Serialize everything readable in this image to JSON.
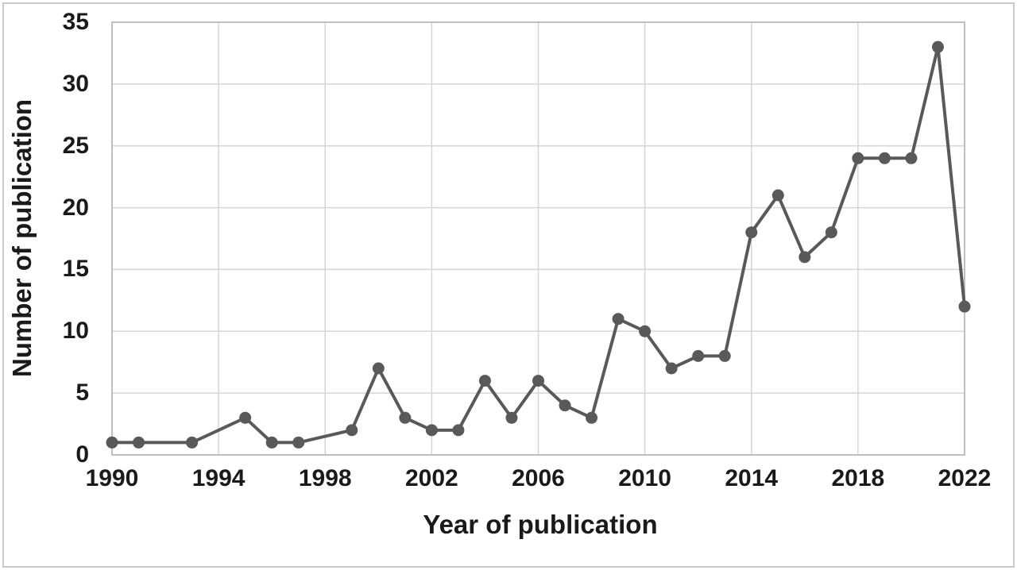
{
  "figure": {
    "background": "#ffffff",
    "border_color": "#c9c9c9"
  },
  "chart_data": {
    "type": "line",
    "title": "",
    "xlabel": "Year of publication",
    "ylabel": "Number of publication",
    "x": [
      1990,
      1991,
      1993,
      1995,
      1996,
      1997,
      1999,
      2000,
      2001,
      2002,
      2003,
      2004,
      2005,
      2006,
      2007,
      2008,
      2009,
      2010,
      2011,
      2012,
      2013,
      2014,
      2015,
      2016,
      2017,
      2018,
      2019,
      2020,
      2021,
      2022
    ],
    "y": [
      1,
      1,
      1,
      3,
      1,
      1,
      2,
      7,
      3,
      2,
      2,
      6,
      3,
      6,
      4,
      3,
      11,
      10,
      7,
      8,
      8,
      18,
      21,
      16,
      18,
      24,
      24,
      24,
      33,
      12
    ],
    "xlim": [
      1990,
      2022
    ],
    "ylim": [
      0,
      35
    ],
    "x_ticks": [
      1990,
      1994,
      1998,
      2002,
      2006,
      2010,
      2014,
      2018,
      2022
    ],
    "y_ticks": [
      0,
      5,
      10,
      15,
      20,
      25,
      30,
      35
    ],
    "grid": true,
    "legend": "none",
    "line_color": "#595959",
    "marker_color": "#595959",
    "marker": "circle",
    "gridline_color": "#d6d6d6",
    "axis_color": "#bfbfbf"
  }
}
